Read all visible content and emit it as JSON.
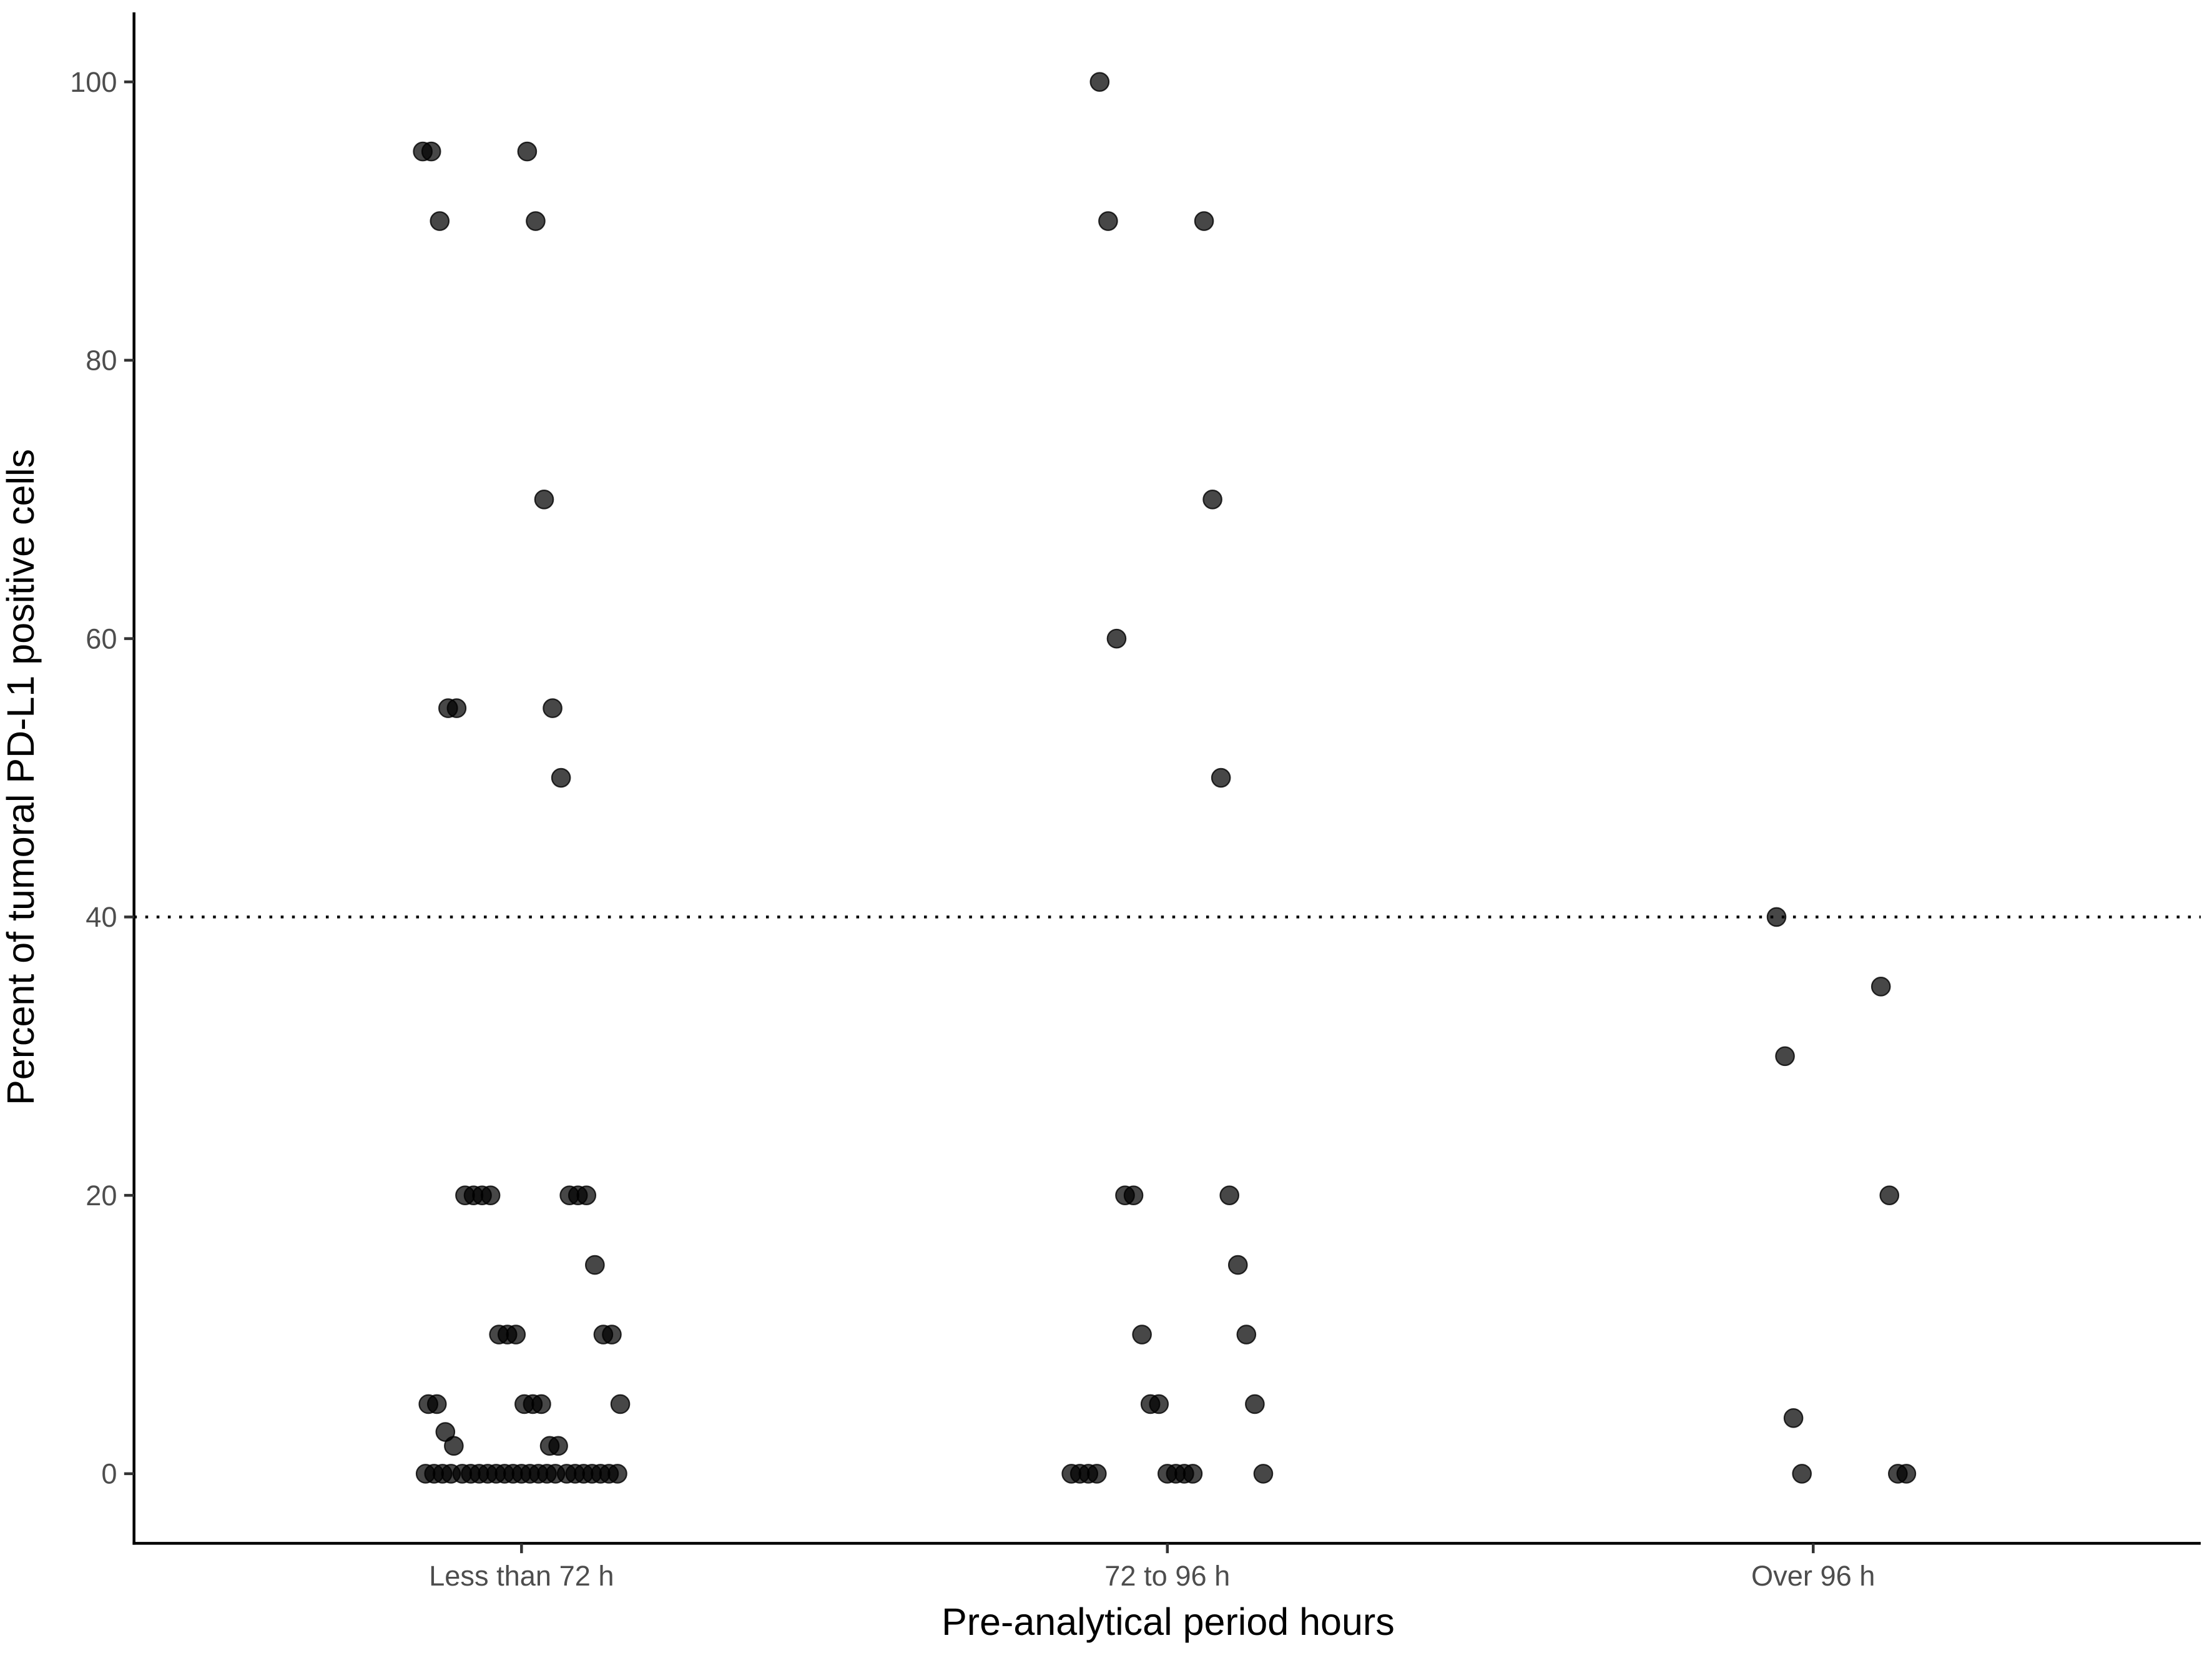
{
  "chart_data": {
    "type": "strip",
    "x_label": "Pre-analytical period hours",
    "y_label": "Percent of tumoral PD-L1 positive cells",
    "categories": [
      "Less than 72 h",
      "72 to 96 h",
      "Over 96 h"
    ],
    "values": [
      [
        95,
        95,
        95,
        90,
        90,
        70,
        55,
        55,
        55,
        50,
        20,
        20,
        20,
        20,
        20,
        20,
        20,
        15,
        10,
        10,
        10,
        10,
        10,
        5,
        5,
        5,
        5,
        5,
        5,
        3,
        2,
        2,
        2,
        0,
        0,
        0,
        0,
        0,
        0,
        0,
        0,
        0,
        0,
        0,
        0,
        0,
        0,
        0,
        0,
        0,
        0,
        0,
        0,
        0,
        0,
        0
      ],
      [
        100,
        90,
        90,
        70,
        60,
        50,
        20,
        20,
        20,
        15,
        10,
        10,
        5,
        5,
        5,
        0,
        0,
        0,
        0,
        0,
        0,
        0,
        0,
        0
      ],
      [
        40,
        35,
        30,
        20,
        4,
        0,
        0,
        0
      ]
    ],
    "color": "#000000",
    "reference_line": 40,
    "ylim": [
      -5,
      105
    ],
    "yticks": [
      0,
      20,
      40,
      60,
      80,
      100
    ],
    "grid": false
  }
}
